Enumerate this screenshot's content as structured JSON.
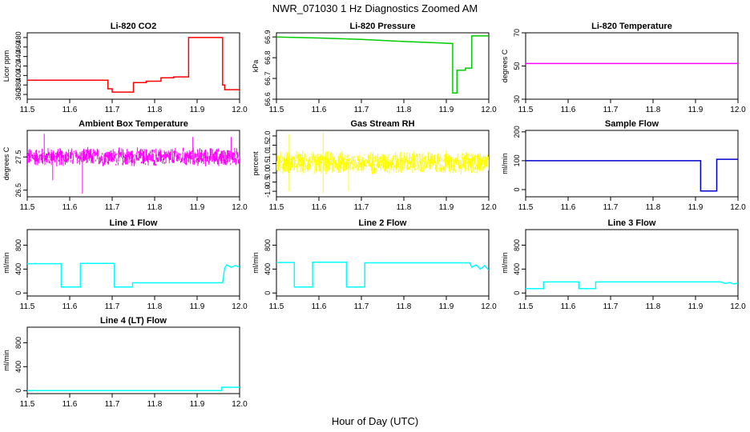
{
  "figure": {
    "title": "NWR_071030  1 Hz Diagnostics Zoomed AM",
    "xlabel": "Hour of Day (UTC)"
  },
  "chart_data": [
    {
      "type": "line",
      "title": "Li-820 CO2",
      "ylabel": "Licor ppm",
      "color": "#ff0000",
      "xlim": [
        11.5,
        12.0
      ],
      "ylim": [
        350,
        490
      ],
      "xticks": [
        11.5,
        11.6,
        11.7,
        11.8,
        11.9,
        12.0
      ],
      "yticks": [
        360,
        380,
        400,
        420,
        440,
        460,
        480
      ],
      "x": [
        11.5,
        11.69,
        11.69,
        11.7,
        11.7,
        11.75,
        11.75,
        11.78,
        11.78,
        11.815,
        11.815,
        11.845,
        11.845,
        11.88,
        11.88,
        11.96,
        11.96,
        11.965,
        11.965,
        12.0
      ],
      "y": [
        390,
        390,
        372,
        372,
        365,
        365,
        385,
        385,
        388,
        388,
        395,
        395,
        397,
        397,
        480,
        480,
        380,
        380,
        370,
        370
      ]
    },
    {
      "type": "line",
      "title": "Li-820 Pressure",
      "ylabel": "kPa",
      "color": "#00cc00",
      "xlim": [
        11.5,
        12.0
      ],
      "ylim": [
        66.6,
        66.92
      ],
      "xticks": [
        11.5,
        11.6,
        11.7,
        11.8,
        11.9,
        12.0
      ],
      "yticks": [
        66.6,
        66.7,
        66.8,
        66.9
      ],
      "x": [
        11.5,
        11.6,
        11.7,
        11.8,
        11.9,
        11.915,
        11.915,
        11.925,
        11.925,
        11.945,
        11.945,
        11.96,
        11.96,
        12.0
      ],
      "y": [
        66.9,
        66.895,
        66.888,
        66.878,
        66.87,
        66.868,
        66.63,
        66.63,
        66.74,
        66.74,
        66.75,
        66.75,
        66.905,
        66.905
      ]
    },
    {
      "type": "line",
      "title": "Li-820 Temperature",
      "ylabel": "degrees C",
      "color": "#ff00ff",
      "xlim": [
        11.5,
        12.0
      ],
      "ylim": [
        30,
        70
      ],
      "xticks": [
        11.5,
        11.6,
        11.7,
        11.8,
        11.9,
        12.0
      ],
      "yticks": [
        30,
        50,
        70
      ],
      "x": [
        11.5,
        12.0
      ],
      "y": [
        51.5,
        51.5
      ]
    },
    {
      "type": "line",
      "title": "Ambient Box Temperature",
      "ylabel": "degrees C",
      "color": "#ff00ff",
      "xlim": [
        11.5,
        12.0
      ],
      "ylim": [
        26.3,
        28.3
      ],
      "xticks": [
        11.5,
        11.6,
        11.7,
        11.8,
        11.9,
        12.0
      ],
      "yticks": [
        26.5,
        27.5
      ],
      "noise": {
        "center": 27.5,
        "spread": 0.45,
        "spikes": [
          [
            11.63,
            26.4
          ],
          [
            11.54,
            28.2
          ],
          [
            11.89,
            28.1
          ],
          [
            11.98,
            28.1
          ],
          [
            11.56,
            26.8
          ]
        ]
      }
    },
    {
      "type": "line",
      "title": "Gas Stream RH",
      "ylabel": "percent",
      "color": "#ffff00",
      "xlim": [
        11.5,
        12.0
      ],
      "ylim": [
        -1.3,
        2.3
      ],
      "xticks": [
        11.5,
        11.6,
        11.7,
        11.8,
        11.9,
        12.0
      ],
      "yticks": [
        -1.0,
        -0.5,
        0.0,
        0.5,
        1.0,
        1.5,
        2.0
      ],
      "noise": {
        "center": 0.55,
        "spread": 1.0,
        "spikes": [
          [
            11.53,
            2.1
          ],
          [
            11.61,
            2.2
          ],
          [
            11.61,
            -1.1
          ],
          [
            11.67,
            -1.0
          ],
          [
            11.53,
            -1.0
          ]
        ]
      }
    },
    {
      "type": "line",
      "title": "Sample Flow",
      "ylabel": "ml/min",
      "color": "#0000cc",
      "xlim": [
        11.5,
        12.0
      ],
      "ylim": [
        -25,
        205
      ],
      "xticks": [
        11.5,
        11.6,
        11.7,
        11.8,
        11.9,
        12.0
      ],
      "yticks": [
        0,
        100,
        200
      ],
      "x": [
        11.5,
        11.912,
        11.912,
        11.95,
        11.95,
        12.0
      ],
      "y": [
        100,
        100,
        -5,
        -5,
        105,
        105
      ]
    },
    {
      "type": "line",
      "title": "Line 1 Flow",
      "ylabel": "ml/min",
      "color": "#00ffff",
      "xlim": [
        11.5,
        12.0
      ],
      "ylim": [
        -50,
        1060
      ],
      "xticks": [
        11.5,
        11.6,
        11.7,
        11.8,
        11.9,
        12.0
      ],
      "yticks": [
        0,
        400,
        800
      ],
      "x": [
        11.5,
        11.58,
        11.58,
        11.625,
        11.625,
        11.705,
        11.705,
        11.748,
        11.748,
        11.96,
        11.965,
        11.97,
        11.98,
        11.99,
        12.0
      ],
      "y": [
        490,
        490,
        100,
        100,
        495,
        495,
        100,
        100,
        170,
        170,
        420,
        470,
        430,
        460,
        430
      ]
    },
    {
      "type": "line",
      "title": "Line 2 Flow",
      "ylabel": "ml/min",
      "color": "#00ffff",
      "xlim": [
        11.5,
        12.0
      ],
      "ylim": [
        -50,
        1060
      ],
      "xticks": [
        11.5,
        11.6,
        11.7,
        11.8,
        11.9,
        12.0
      ],
      "yticks": [
        0,
        400,
        800
      ],
      "x": [
        11.5,
        11.542,
        11.542,
        11.585,
        11.585,
        11.665,
        11.665,
        11.708,
        11.708,
        11.955,
        11.96,
        11.97,
        11.98,
        11.99,
        12.0
      ],
      "y": [
        510,
        510,
        100,
        100,
        515,
        515,
        100,
        100,
        505,
        505,
        430,
        470,
        400,
        460,
        380
      ]
    },
    {
      "type": "line",
      "title": "Line 3 Flow",
      "ylabel": "ml/min",
      "color": "#00ffff",
      "xlim": [
        11.5,
        12.0
      ],
      "ylim": [
        -50,
        1060
      ],
      "xticks": [
        11.5,
        11.6,
        11.7,
        11.8,
        11.9,
        12.0
      ],
      "yticks": [
        0,
        400,
        800
      ],
      "x": [
        11.5,
        11.542,
        11.542,
        11.625,
        11.625,
        11.665,
        11.665,
        11.96,
        11.97,
        11.98,
        11.99,
        12.0
      ],
      "y": [
        75,
        75,
        185,
        185,
        75,
        75,
        185,
        185,
        160,
        175,
        150,
        165
      ]
    },
    {
      "type": "line",
      "title": "Line 4 (LT) Flow",
      "ylabel": "ml/min",
      "color": "#00ffff",
      "xlim": [
        11.5,
        12.0
      ],
      "ylim": [
        -50,
        1060
      ],
      "xticks": [
        11.5,
        11.6,
        11.7,
        11.8,
        11.9,
        12.0
      ],
      "yticks": [
        0,
        400,
        800
      ],
      "x": [
        11.5,
        11.958,
        11.958,
        12.0
      ],
      "y": [
        0,
        0,
        55,
        55
      ]
    }
  ]
}
